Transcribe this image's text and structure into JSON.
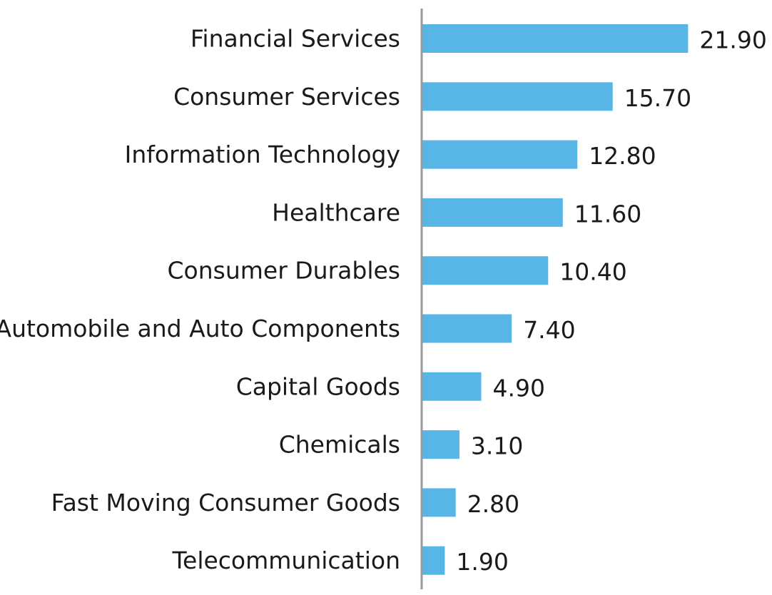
{
  "chart_data": {
    "type": "bar",
    "orientation": "horizontal",
    "categories": [
      "Financial Services",
      "Consumer Services",
      "Information Technology",
      "Healthcare",
      "Consumer Durables",
      "Automobile and Auto Components",
      "Capital Goods",
      "Chemicals",
      "Fast Moving Consumer Goods",
      "Telecommunication"
    ],
    "values": [
      21.9,
      15.7,
      12.8,
      11.6,
      10.4,
      7.4,
      4.9,
      3.1,
      2.8,
      1.9
    ],
    "value_labels": [
      "21.90",
      "15.70",
      "12.80",
      "11.60",
      "10.40",
      "7.40",
      "4.90",
      "3.10",
      "2.80",
      "1.90"
    ],
    "title": "",
    "xlabel": "",
    "ylabel": "",
    "xlim": [
      0,
      22
    ],
    "grid": false,
    "legend": "none",
    "colors": {
      "bar": "#57b6e6",
      "axis": "#999999",
      "text": "#1a1a1a"
    }
  }
}
